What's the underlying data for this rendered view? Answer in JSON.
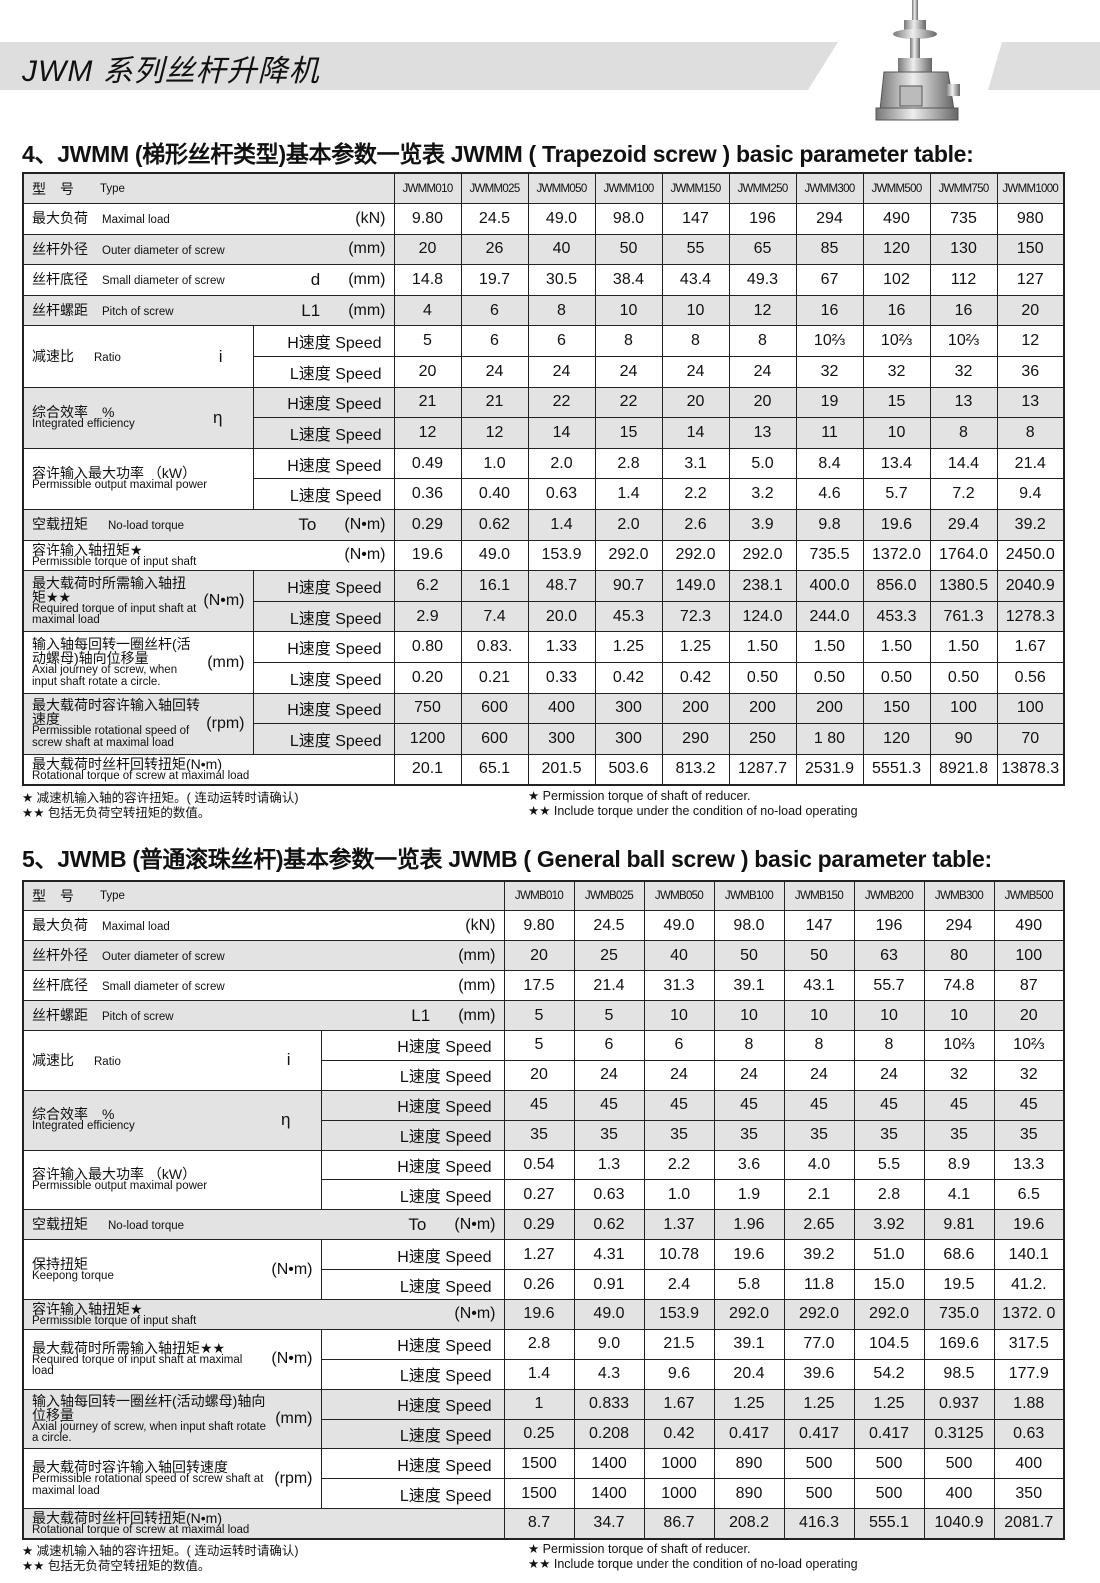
{
  "header": {
    "title": "JWM 系列丝杆升降机"
  },
  "colors": {
    "band": "#dedede",
    "row_shade": "#e3e3e3",
    "border": "#222222"
  },
  "tables": [
    {
      "title": "4、JWMM (梯形丝杆类型)基本参数一览表   JWMM ( Trapezoid screw ) basic parameter table:",
      "type_cn": "型　号",
      "type_en": "Type",
      "models": [
        "JWMM010",
        "JWMM025",
        "JWMM050",
        "JWMM100",
        "JWMM150",
        "JWMM250",
        "JWMM300",
        "JWMM500",
        "JWMM750",
        "JWMM1000"
      ],
      "rows": [
        {
          "cn": "最大负荷",
          "en": "Maximal load",
          "sym": "",
          "unit": "(kN)",
          "values": [
            "9.80",
            "24.5",
            "49.0",
            "98.0",
            "147",
            "196",
            "294",
            "490",
            "735",
            "980"
          ]
        },
        {
          "cn": "丝杆外径",
          "en": "Outer diameter of screw",
          "sym": "",
          "unit": "(mm)",
          "values": [
            "20",
            "26",
            "40",
            "50",
            "55",
            "65",
            "85",
            "120",
            "130",
            "150"
          ]
        },
        {
          "cn": "丝杆底径",
          "en": "Small diameter of screw",
          "sym": "d",
          "unit": "(mm)",
          "values": [
            "14.8",
            "19.7",
            "30.5",
            "38.4",
            "43.4",
            "49.3",
            "67",
            "102",
            "112",
            "127"
          ]
        },
        {
          "cn": "丝杆螺距",
          "en": "Pitch of screw",
          "sym": "L1",
          "unit": "(mm)",
          "values": [
            "4",
            "6",
            "8",
            "10",
            "10",
            "12",
            "16",
            "16",
            "16",
            "20"
          ]
        },
        {
          "cn": "减速比",
          "en": "Ratio",
          "inline": true,
          "sym": "i",
          "unit": "",
          "sub": [
            {
              "label": "H速度 Speed",
              "values": [
                "5",
                "6",
                "6",
                "8",
                "8",
                "8",
                "10⅔",
                "10⅔",
                "10⅔",
                "12"
              ]
            },
            {
              "label": "L速度 Speed",
              "values": [
                "20",
                "24",
                "24",
                "24",
                "24",
                "24",
                "32",
                "32",
                "32",
                "36"
              ]
            }
          ]
        },
        {
          "cn": "综合效率　%",
          "en": "Integrated efficiency",
          "sym": "η",
          "unit": "",
          "sub": [
            {
              "label": "H速度 Speed",
              "values": [
                "21",
                "21",
                "22",
                "22",
                "20",
                "20",
                "19",
                "15",
                "13",
                "13"
              ]
            },
            {
              "label": "L速度 Speed",
              "values": [
                "12",
                "12",
                "14",
                "15",
                "14",
                "13",
                "11",
                "10",
                "8",
                "8"
              ]
            }
          ]
        },
        {
          "cn": "容许输入最大功率 （kW）",
          "en": "Permissible output maximal power",
          "sym": "",
          "unit": "",
          "sub": [
            {
              "label": "H速度 Speed",
              "values": [
                "0.49",
                "1.0",
                "2.0",
                "2.8",
                "3.1",
                "5.0",
                "8.4",
                "13.4",
                "14.4",
                "21.4"
              ]
            },
            {
              "label": "L速度 Speed",
              "values": [
                "0.36",
                "0.40",
                "0.63",
                "1.4",
                "2.2",
                "3.2",
                "4.6",
                "5.7",
                "7.2",
                "9.4"
              ]
            }
          ]
        },
        {
          "cn": "空载扭矩",
          "en": "No-load torque",
          "inline": true,
          "sym": "To",
          "unit": "(N•m)",
          "values": [
            "0.29",
            "0.62",
            "1.4",
            "2.0",
            "2.6",
            "3.9",
            "9.8",
            "19.6",
            "29.4",
            "39.2"
          ]
        },
        {
          "cn": "容许输入轴扭矩★",
          "en": "Permissible torque of input shaft",
          "sym": "",
          "unit": "(N•m)",
          "values": [
            "19.6",
            "49.0",
            "153.9",
            "292.0",
            "292.0",
            "292.0",
            "735.5",
            "1372.0",
            "1764.0",
            "2450.0"
          ]
        },
        {
          "cn": "最大载荷时所需输入轴扭矩★★",
          "en": "Required torque of input shaft at maximal load",
          "sym": "",
          "unit": "(N•m)",
          "sub": [
            {
              "label": "H速度 Speed",
              "values": [
                "6.2",
                "16.1",
                "48.7",
                "90.7",
                "149.0",
                "238.1",
                "400.0",
                "856.0",
                "1380.5",
                "2040.9"
              ]
            },
            {
              "label": "L速度 Speed",
              "values": [
                "2.9",
                "7.4",
                "20.0",
                "45.3",
                "72.3",
                "124.0",
                "244.0",
                "453.3",
                "761.3",
                "1278.3"
              ]
            }
          ]
        },
        {
          "cn": "输入轴每回转一圈丝杆(活动螺母)轴向位移量",
          "en": "Axial journey of screw, when input shaft rotate a circle.",
          "sym": "",
          "unit": "(mm)",
          "sub": [
            {
              "label": "H速度 Speed",
              "values": [
                "0.80",
                "0.83.",
                "1.33",
                "1.25",
                "1.25",
                "1.50",
                "1.50",
                "1.50",
                "1.50",
                "1.67"
              ]
            },
            {
              "label": "L速度 Speed",
              "values": [
                "0.20",
                "0.21",
                "0.33",
                "0.42",
                "0.42",
                "0.50",
                "0.50",
                "0.50",
                "0.50",
                "0.56"
              ]
            }
          ]
        },
        {
          "cn": "最大载荷时容许输入轴回转速度",
          "en": "Permissible rotational speed of screw shaft at maximal load",
          "sym": "",
          "unit": "(rpm)",
          "sub": [
            {
              "label": "H速度 Speed",
              "values": [
                "750",
                "600",
                "400",
                "300",
                "200",
                "200",
                "200",
                "150",
                "100",
                "100"
              ]
            },
            {
              "label": "L速度 Speed",
              "values": [
                "1200",
                "600",
                "300",
                "300",
                "290",
                "250",
                "1 80",
                "120",
                "90",
                "70"
              ]
            }
          ]
        },
        {
          "cn": "最大载荷时丝杆回转扭矩(N•m)",
          "en": "Rotational torque of screw at maximal load",
          "sym": "",
          "unit": "",
          "values": [
            "20.1",
            "65.1",
            "201.5",
            "503.6",
            "813.2",
            "1287.7",
            "2531.9",
            "5551.3",
            "8921.8",
            "13878.3"
          ]
        }
      ],
      "notes_cn": [
        "★  减速机输入轴的容许扭矩。( 连动运转时请确认)",
        "★★ 包括无负荷空转扭矩的数值。"
      ],
      "notes_en": [
        "★  Permission torque of shaft of reducer.",
        "★★ Include torque under the condition of no-load operating"
      ]
    },
    {
      "title": "5、JWMB (普通滚珠丝杆)基本参数一览表  JWMB ( General ball screw ) basic parameter table:",
      "type_cn": "型　号",
      "type_en": "Type",
      "models": [
        "JWMB010",
        "JWMB025",
        "JWMB050",
        "JWMB100",
        "JWMB150",
        "JWMB200",
        "JWMB300",
        "JWMB500"
      ],
      "rows": [
        {
          "cn": "最大负荷",
          "en": "Maximal load",
          "sym": "",
          "unit": "(kN)",
          "values": [
            "9.80",
            "24.5",
            "49.0",
            "98.0",
            "147",
            "196",
            "294",
            "490"
          ]
        },
        {
          "cn": "丝杆外径",
          "en": "Outer diameter of screw",
          "sym": "",
          "unit": "(mm)",
          "values": [
            "20",
            "25",
            "40",
            "50",
            "50",
            "63",
            "80",
            "100"
          ]
        },
        {
          "cn": "丝杆底径",
          "en": "Small diameter of screw",
          "sym": "",
          "unit": "(mm)",
          "values": [
            "17.5",
            "21.4",
            "31.3",
            "39.1",
            "43.1",
            "55.7",
            "74.8",
            "87"
          ]
        },
        {
          "cn": "丝杆螺距",
          "en": "Pitch of screw",
          "sym": "L1",
          "unit": "(mm)",
          "values": [
            "5",
            "5",
            "10",
            "10",
            "10",
            "10",
            "10",
            "20"
          ]
        },
        {
          "cn": "减速比",
          "en": "Ratio",
          "inline": true,
          "sym": "i",
          "unit": "",
          "sub": [
            {
              "label": "H速度 Speed",
              "values": [
                "5",
                "6",
                "6",
                "8",
                "8",
                "8",
                "10⅔",
                "10⅔"
              ]
            },
            {
              "label": "L速度 Speed",
              "values": [
                "20",
                "24",
                "24",
                "24",
                "24",
                "24",
                "32",
                "32"
              ]
            }
          ]
        },
        {
          "cn": "综合效率　%",
          "en": "Integrated efficiency",
          "sym": "η",
          "unit": "",
          "sub": [
            {
              "label": "H速度 Speed",
              "values": [
                "45",
                "45",
                "45",
                "45",
                "45",
                "45",
                "45",
                "45"
              ]
            },
            {
              "label": "L速度 Speed",
              "values": [
                "35",
                "35",
                "35",
                "35",
                "35",
                "35",
                "35",
                "35"
              ]
            }
          ]
        },
        {
          "cn": "容许输入最大功率 （kW）",
          "en": "Permissible output maximal power",
          "sym": "",
          "unit": "",
          "sub": [
            {
              "label": "H速度 Speed",
              "values": [
                "0.54",
                "1.3",
                "2.2",
                "3.6",
                "4.0",
                "5.5",
                "8.9",
                "13.3"
              ]
            },
            {
              "label": "L速度 Speed",
              "values": [
                "0.27",
                "0.63",
                "1.0",
                "1.9",
                "2.1",
                "2.8",
                "4.1",
                "6.5"
              ]
            }
          ]
        },
        {
          "cn": "空载扭矩",
          "en": "No-load torque",
          "inline": true,
          "sym": "To",
          "unit": "(N•m)",
          "values": [
            "0.29",
            "0.62",
            "1.37",
            "1.96",
            "2.65",
            "3.92",
            "9.81",
            "19.6"
          ]
        },
        {
          "cn": "保持扭矩",
          "en": "Keepong torque",
          "sym": "",
          "unit": "(N•m)",
          "sub": [
            {
              "label": "H速度 Speed",
              "values": [
                "1.27",
                "4.31",
                "10.78",
                "19.6",
                "39.2",
                "51.0",
                "68.6",
                "140.1"
              ]
            },
            {
              "label": "L速度 Speed",
              "values": [
                "0.26",
                "0.91",
                "2.4",
                "5.8",
                "11.8",
                "15.0",
                "19.5",
                "41.2."
              ]
            }
          ]
        },
        {
          "cn": "容许输入轴扭矩★",
          "en": "Permissible torque of input shaft",
          "sym": "",
          "unit": "(N•m)",
          "values": [
            "19.6",
            "49.0",
            "153.9",
            "292.0",
            "292.0",
            "292.0",
            "735.0",
            "1372. 0"
          ]
        },
        {
          "cn": "最大载荷时所需输入轴扭矩★★",
          "en": "Required torque of input shaft at maximal load",
          "sym": "",
          "unit": "(N•m)",
          "sub": [
            {
              "label": "H速度 Speed",
              "values": [
                "2.8",
                "9.0",
                "21.5",
                "39.1",
                "77.0",
                "104.5",
                "169.6",
                "317.5"
              ]
            },
            {
              "label": "L速度 Speed",
              "values": [
                "1.4",
                "4.3",
                "9.6",
                "20.4",
                "39.6",
                "54.2",
                "98.5",
                "177.9"
              ]
            }
          ]
        },
        {
          "cn": "输入轴每回转一圈丝杆(活动螺母)轴向位移量",
          "en": "Axial journey of screw, when input shaft rotate a circle.",
          "sym": "",
          "unit": "(mm)",
          "sub": [
            {
              "label": "H速度 Speed",
              "values": [
                "1",
                "0.833",
                "1.67",
                "1.25",
                "1.25",
                "1.25",
                "0.937",
                "1.88"
              ]
            },
            {
              "label": "L速度 Speed",
              "values": [
                "0.25",
                "0.208",
                "0.42",
                "0.417",
                "0.417",
                "0.417",
                "0.3125",
                "0.63"
              ]
            }
          ]
        },
        {
          "cn": "最大载荷时容许输入轴回转速度",
          "en": "Permissible rotational speed of screw shaft at maximal load",
          "sym": "",
          "unit": "(rpm)",
          "sub": [
            {
              "label": "H速度 Speed",
              "values": [
                "1500",
                "1400",
                "1000",
                "890",
                "500",
                "500",
                "500",
                "400"
              ]
            },
            {
              "label": "L速度 Speed",
              "values": [
                "1500",
                "1400",
                "1000",
                "890",
                "500",
                "500",
                "400",
                "350"
              ]
            }
          ]
        },
        {
          "cn": "最大载荷时丝杆回转扭矩(N•m)",
          "en": "Rotational torque of screw at maximal load",
          "sym": "",
          "unit": "",
          "values": [
            "8.7",
            "34.7",
            "86.7",
            "208.2",
            "416.3",
            "555.1",
            "1040.9",
            "2081.7"
          ]
        }
      ],
      "notes_cn": [
        "★  减速机输入轴的容许扭矩。( 连动运转时请确认)",
        "★★ 包括无负荷空转扭矩的数值。"
      ],
      "notes_en": [
        "★  Permission torque of shaft of reducer.",
        "★★ Include torque under the condition of no-load operating"
      ]
    }
  ]
}
